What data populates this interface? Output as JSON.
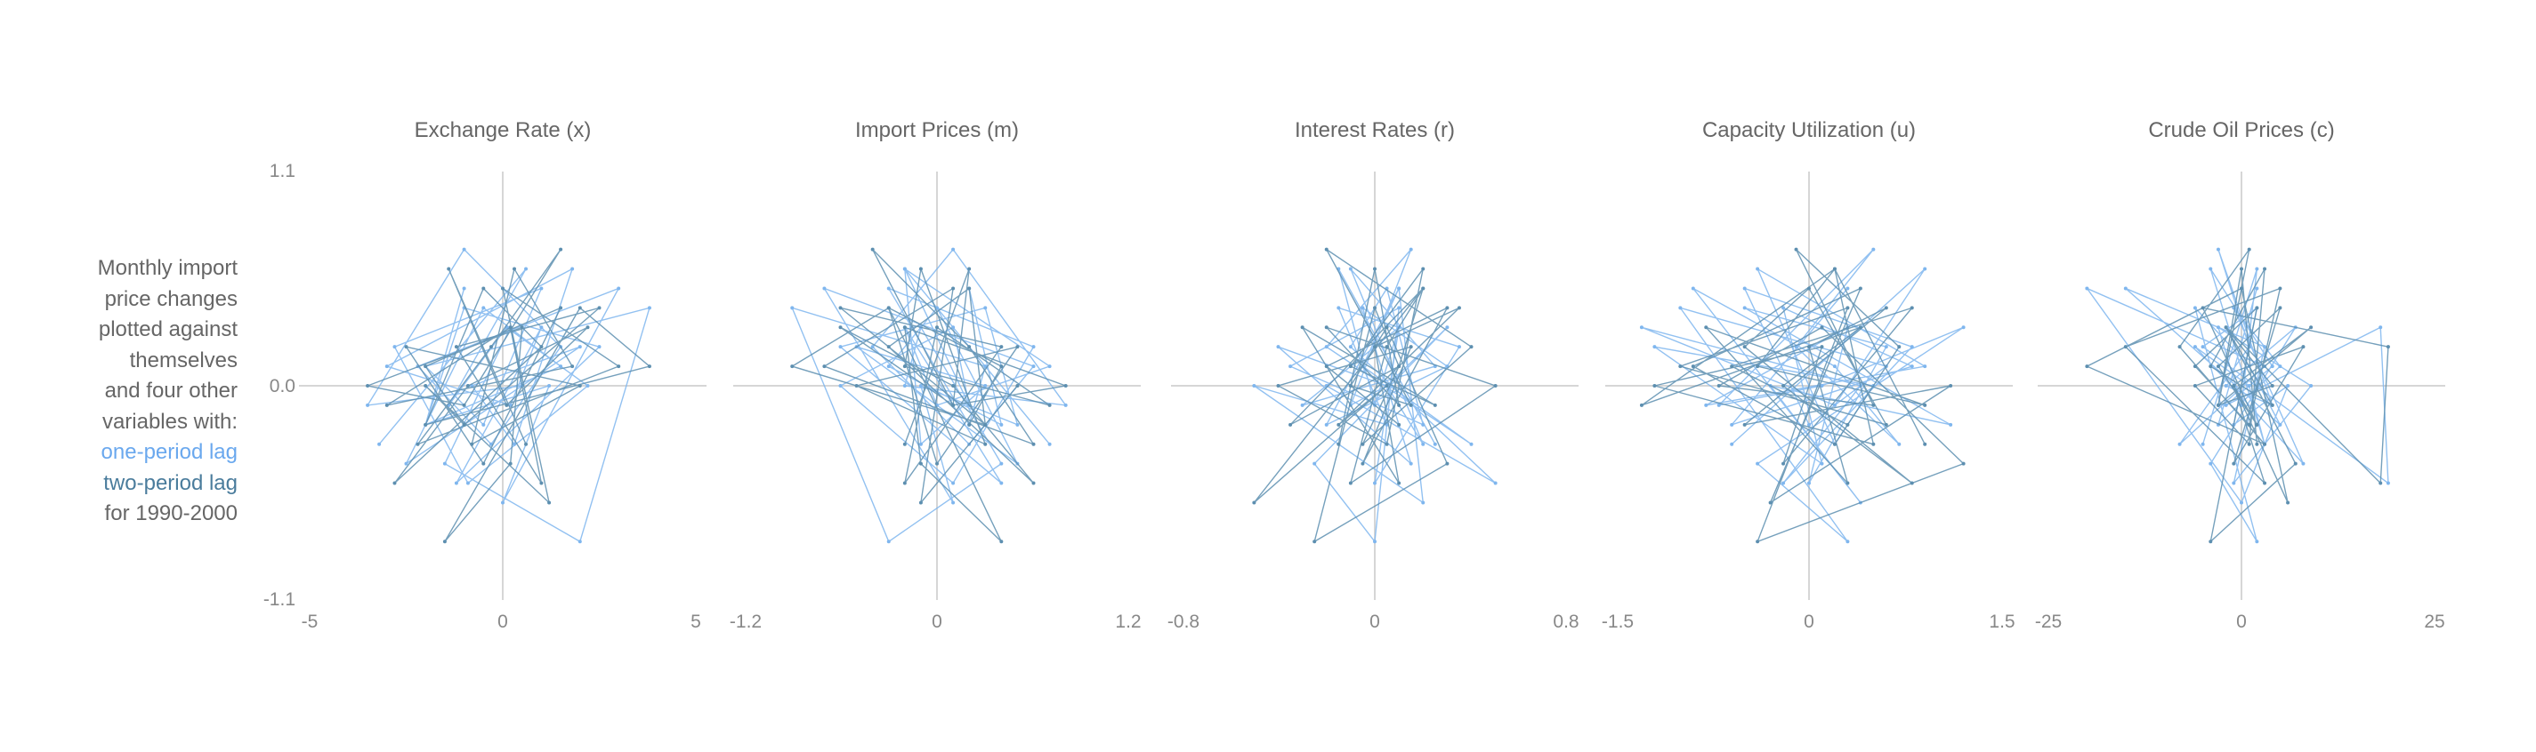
{
  "caption": {
    "lines": [
      "Monthly import",
      "price changes",
      "plotted against",
      "themselves",
      "and four other",
      "variables with:"
    ],
    "lag1_label": "one-period lag",
    "lag2_label": "two-period lag",
    "period": "for 1990-2000"
  },
  "colors": {
    "lag1": "#7fb6ee",
    "lag2": "#5d8fb0",
    "axis": "#d6d6d6",
    "text": "#666666"
  },
  "chart_data": {
    "type": "line",
    "ylim": [
      -1.1,
      1.1
    ],
    "yticks": [
      "1.1",
      "0.0",
      "-1.1"
    ],
    "y_import_price_changes": [
      0.3,
      0.5,
      -0.2,
      0.1,
      0.4,
      -0.4,
      0.2,
      0,
      -0.3,
      0.6,
      0.1,
      -0.1,
      0.3,
      -0.5,
      0.2,
      0.4,
      -0.2,
      0,
      -0.6,
      0.5,
      0.1,
      -0.3,
      0.2,
      0.7,
      -0.1,
      0,
      0.3,
      -0.4,
      -0.8,
      0.4,
      0.1,
      -0.2,
      0.5,
      0.2,
      -0.5,
      0,
      0.3,
      -0.1,
      0.6,
      -0.3
    ],
    "panels": [
      {
        "title": "Exchange Rate (x)",
        "xlim": [
          -5,
          5
        ],
        "xticks": [
          "-5",
          "0",
          "5"
        ],
        "x": [
          -1,
          -2,
          1.5,
          -0.5,
          -2.5,
          2,
          -0.8,
          0.3,
          1.8,
          -3,
          0.2,
          1,
          -1.2,
          2.5,
          -1,
          -2,
          1.2,
          0,
          3,
          -2.2,
          -0.3,
          1.5,
          -1,
          -3.5,
          0.5,
          0.2,
          -1.5,
          2,
          3.8,
          -2,
          -0.5,
          1,
          -2.8,
          -0.9,
          2.2,
          0.1,
          -1.4,
          0.6,
          -3.2,
          1.3
        ]
      },
      {
        "title": "Import Prices (m)",
        "xlim": [
          -1.2,
          1.2
        ],
        "xticks": [
          "-1.2",
          "0",
          "1.2"
        ],
        "x": [
          0.2,
          0.4,
          -0.3,
          0,
          0.5,
          -0.5,
          0.3,
          -0.1,
          -0.2,
          0.7,
          0,
          -0.2,
          0.4,
          -0.6,
          0.3,
          0.5,
          -0.1,
          0.1,
          -0.7,
          0.6,
          0.2,
          -0.4,
          0.1,
          0.8,
          -0.2,
          -0.1,
          0.4,
          -0.3,
          -0.9,
          0.3,
          0.2,
          -0.3,
          0.6,
          0.1,
          -0.6,
          0.1,
          0.2,
          -0.2,
          0.7,
          -0.4
        ]
      },
      {
        "title": "Interest Rates (r)",
        "xlim": [
          -0.8,
          0.8
        ],
        "xticks": [
          "-0.8",
          "0",
          "0.8"
        ],
        "x": [
          0.1,
          -0.2,
          0.3,
          -0.05,
          0.15,
          -0.4,
          0.05,
          0.2,
          -0.1,
          0.25,
          -0.3,
          0.1,
          0,
          0.35,
          -0.15,
          0.05,
          -0.5,
          0.2,
          0.1,
          -0.05,
          0.4,
          -0.2,
          0.15,
          -0.1,
          0.05,
          0.3,
          -0.25,
          0,
          0.1,
          -0.35,
          0.2,
          0.05,
          -0.1,
          0.5,
          -0.2,
          0.1,
          0,
          -0.15,
          0.25,
          0.05
        ]
      },
      {
        "title": "Capacity Utilization (u)",
        "xlim": [
          -1.5,
          1.5
        ],
        "xticks": [
          "-1.5",
          "0",
          "1.5"
        ],
        "x": [
          0.3,
          -0.6,
          0.8,
          -0.2,
          0.1,
          -1.2,
          0.5,
          0.2,
          -0.4,
          0.9,
          -0.8,
          0.3,
          0,
          0.6,
          -0.5,
          1.1,
          -0.3,
          0.4,
          -0.9,
          0.2,
          0.7,
          -0.1,
          0.5,
          -0.7,
          0.1,
          1.2,
          -0.4,
          0.3,
          -1.0,
          0.6,
          0,
          -0.5,
          0.8,
          -0.2,
          0.4,
          -1.3,
          0.2,
          0.9,
          -0.6,
          0.1
        ]
      },
      {
        "title": "Crude Oil Prices (c)",
        "xlim": [
          -25,
          25
        ],
        "xticks": [
          "-25",
          "0",
          "25"
        ],
        "x": [
          2,
          -3,
          5,
          -1,
          8,
          -6,
          1,
          3,
          -4,
          4,
          -2,
          18,
          19,
          -5,
          2,
          -1,
          6,
          0,
          -20,
          3,
          -8,
          1,
          -3,
          4,
          -2,
          7,
          -4,
          2,
          -6,
          1,
          5,
          -15,
          3,
          -1,
          9,
          -3,
          0,
          2,
          -5,
          1
        ]
      }
    ]
  }
}
